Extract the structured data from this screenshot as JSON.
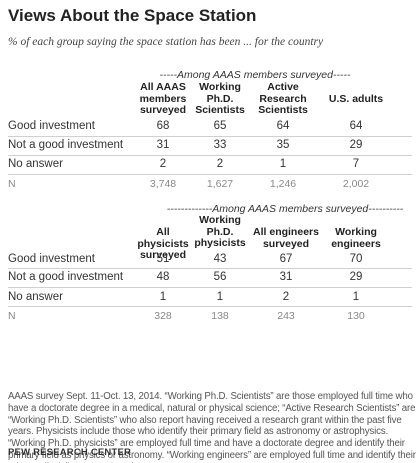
{
  "title": "Views About the Space Station",
  "subtitle": "% of each group saying the space station has been ... for the country",
  "table1": {
    "group_header": "-----Among AAAS members surveyed-----",
    "columns": [
      "All AAAS members surveyed",
      "Working Ph.D. Scientists",
      "Active Research Scientists",
      "U.S. adults"
    ],
    "rows": [
      {
        "label": "Good investment",
        "values": [
          "68",
          "65",
          "64",
          "64"
        ]
      },
      {
        "label": "Not a good investment",
        "values": [
          "31",
          "33",
          "35",
          "29"
        ]
      },
      {
        "label": "No answer",
        "values": [
          "2",
          "2",
          "1",
          "7"
        ]
      },
      {
        "label": "N",
        "values": [
          "3,748",
          "1,627",
          "1,246",
          "2,002"
        ]
      }
    ]
  },
  "table2": {
    "group_header": "-------------Among AAAS members surveyed----------",
    "columns": [
      "All physicists surveyed",
      "Working Ph.D. physicists",
      "All engineers surveyed",
      "Working engineers"
    ],
    "rows": [
      {
        "label": "Good investment",
        "values": [
          "51",
          "43",
          "67",
          "70"
        ]
      },
      {
        "label": "Not a good investment",
        "values": [
          "48",
          "56",
          "31",
          "29"
        ]
      },
      {
        "label": "No answer",
        "values": [
          "1",
          "1",
          "2",
          "1"
        ]
      },
      {
        "label": "N",
        "values": [
          "328",
          "138",
          "243",
          "130"
        ]
      }
    ]
  },
  "note": "AAAS survey Sept. 11-Oct. 13, 2014. “Working Ph.D. Scientists” are those employed full time who have a doctorate degree in a medical, natural or physical science; “Active Research Scientists” are “Working Ph.D. Scientists” who also report having received a research grant within the past five years. Physicists include those who identify their primary field as astronomy or astrophysics. “Working Ph.D. physicists” are employed full time and have a doctorate degree and identify their primary field as physics or astronomy. “Working engineers” are employed full time and identify their primary discipline as engineering.",
  "source": "PEW RESEARCH CENTER"
}
